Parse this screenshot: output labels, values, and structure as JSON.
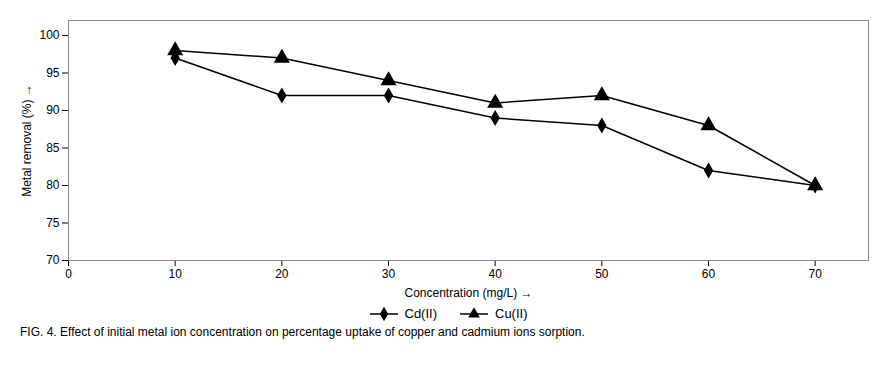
{
  "chart_data": {
    "type": "line",
    "x": [
      10,
      20,
      30,
      40,
      50,
      60,
      70
    ],
    "series": [
      {
        "name": "Cd(II)",
        "color": "#000000",
        "marker": "diamond",
        "values": [
          97,
          92,
          92,
          89,
          88,
          82,
          80
        ]
      },
      {
        "name": "Cu(II)",
        "color": "#000000",
        "marker": "triangle",
        "values": [
          98,
          97,
          94,
          91,
          92,
          88,
          80
        ]
      }
    ],
    "xlabel": "Concentration (mg/L)",
    "ylabel": "Metal removal (%)",
    "xlim": [
      0,
      75
    ],
    "ylim": [
      70,
      102
    ],
    "xticks": [
      0,
      10,
      20,
      30,
      40,
      50,
      60,
      70
    ],
    "yticks": [
      70,
      75,
      80,
      85,
      90,
      95,
      100
    ],
    "grid": false,
    "legend": "bottom",
    "caption": "FIG. 4. Effect of initial metal ion concentration on percentage uptake of copper and cadmium ions sorption."
  }
}
